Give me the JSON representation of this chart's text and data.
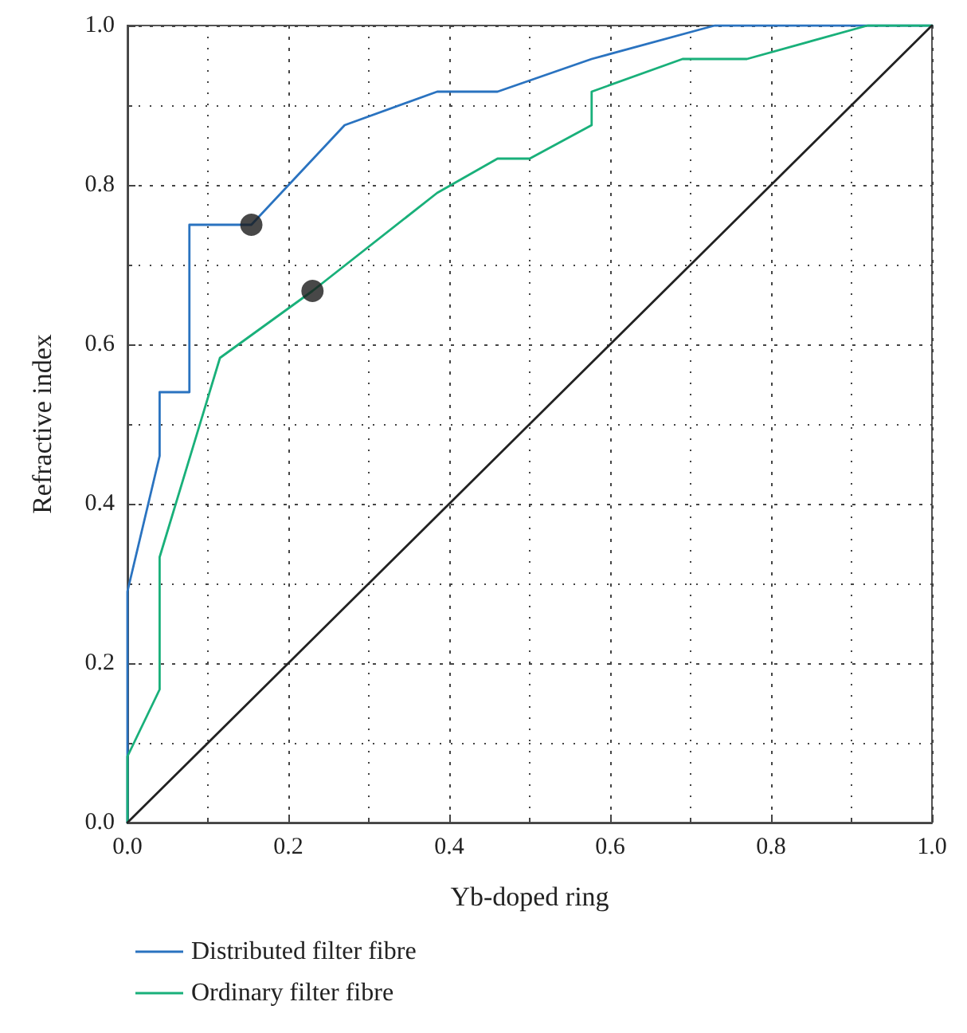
{
  "chart_data": {
    "type": "line",
    "xlabel": "Yb-doped ring",
    "ylabel": "Refractive index",
    "xlim": [
      0,
      1
    ],
    "ylim": [
      0,
      1
    ],
    "xticks": [
      {
        "value": 0,
        "label": "0.0"
      },
      0.2,
      0.4,
      0.6,
      0.8,
      {
        "value": 1,
        "label": "1.0"
      }
    ],
    "yticks": [
      {
        "value": 0,
        "label": "0.0"
      },
      0.2,
      0.4,
      0.6,
      0.8,
      {
        "value": 1,
        "label": "1.0"
      }
    ],
    "grid": true,
    "legend": "bottom",
    "marker": "none",
    "line_style": "solid",
    "series": [
      {
        "name": "Distributed filter fibre",
        "color": "#2a73c0",
        "x": [
          0,
          0,
          0.04,
          0.04,
          0.077,
          0.077,
          0.154,
          0.27,
          0.385,
          0.46,
          0.577,
          0.73,
          1
        ],
        "values": [
          0,
          0.29,
          0.46,
          0.54,
          0.54,
          0.75,
          0.75,
          0.875,
          0.917,
          0.917,
          0.958,
          1,
          1
        ]
      },
      {
        "name": "Ordinary filter fibre",
        "color": "#19b07a",
        "x": [
          0,
          0,
          0.04,
          0.04,
          0.115,
          0.23,
          0.385,
          0.46,
          0.5,
          0.577,
          0.577,
          0.69,
          0.77,
          0.92,
          1
        ],
        "values": [
          0,
          0.083,
          0.167,
          0.333,
          0.583,
          0.667,
          0.79,
          0.833,
          0.833,
          0.875,
          0.917,
          0.958,
          0.958,
          1,
          1
        ]
      },
      {
        "type": "line",
        "color": "#222222",
        "x": [
          0,
          1
        ],
        "values": [
          0,
          1
        ]
      },
      {
        "type": "scatter",
        "marker": "circle",
        "color": "#1a1a1a",
        "x": [
          0.154,
          0.23
        ],
        "values": [
          0.75,
          0.667
        ]
      }
    ]
  }
}
